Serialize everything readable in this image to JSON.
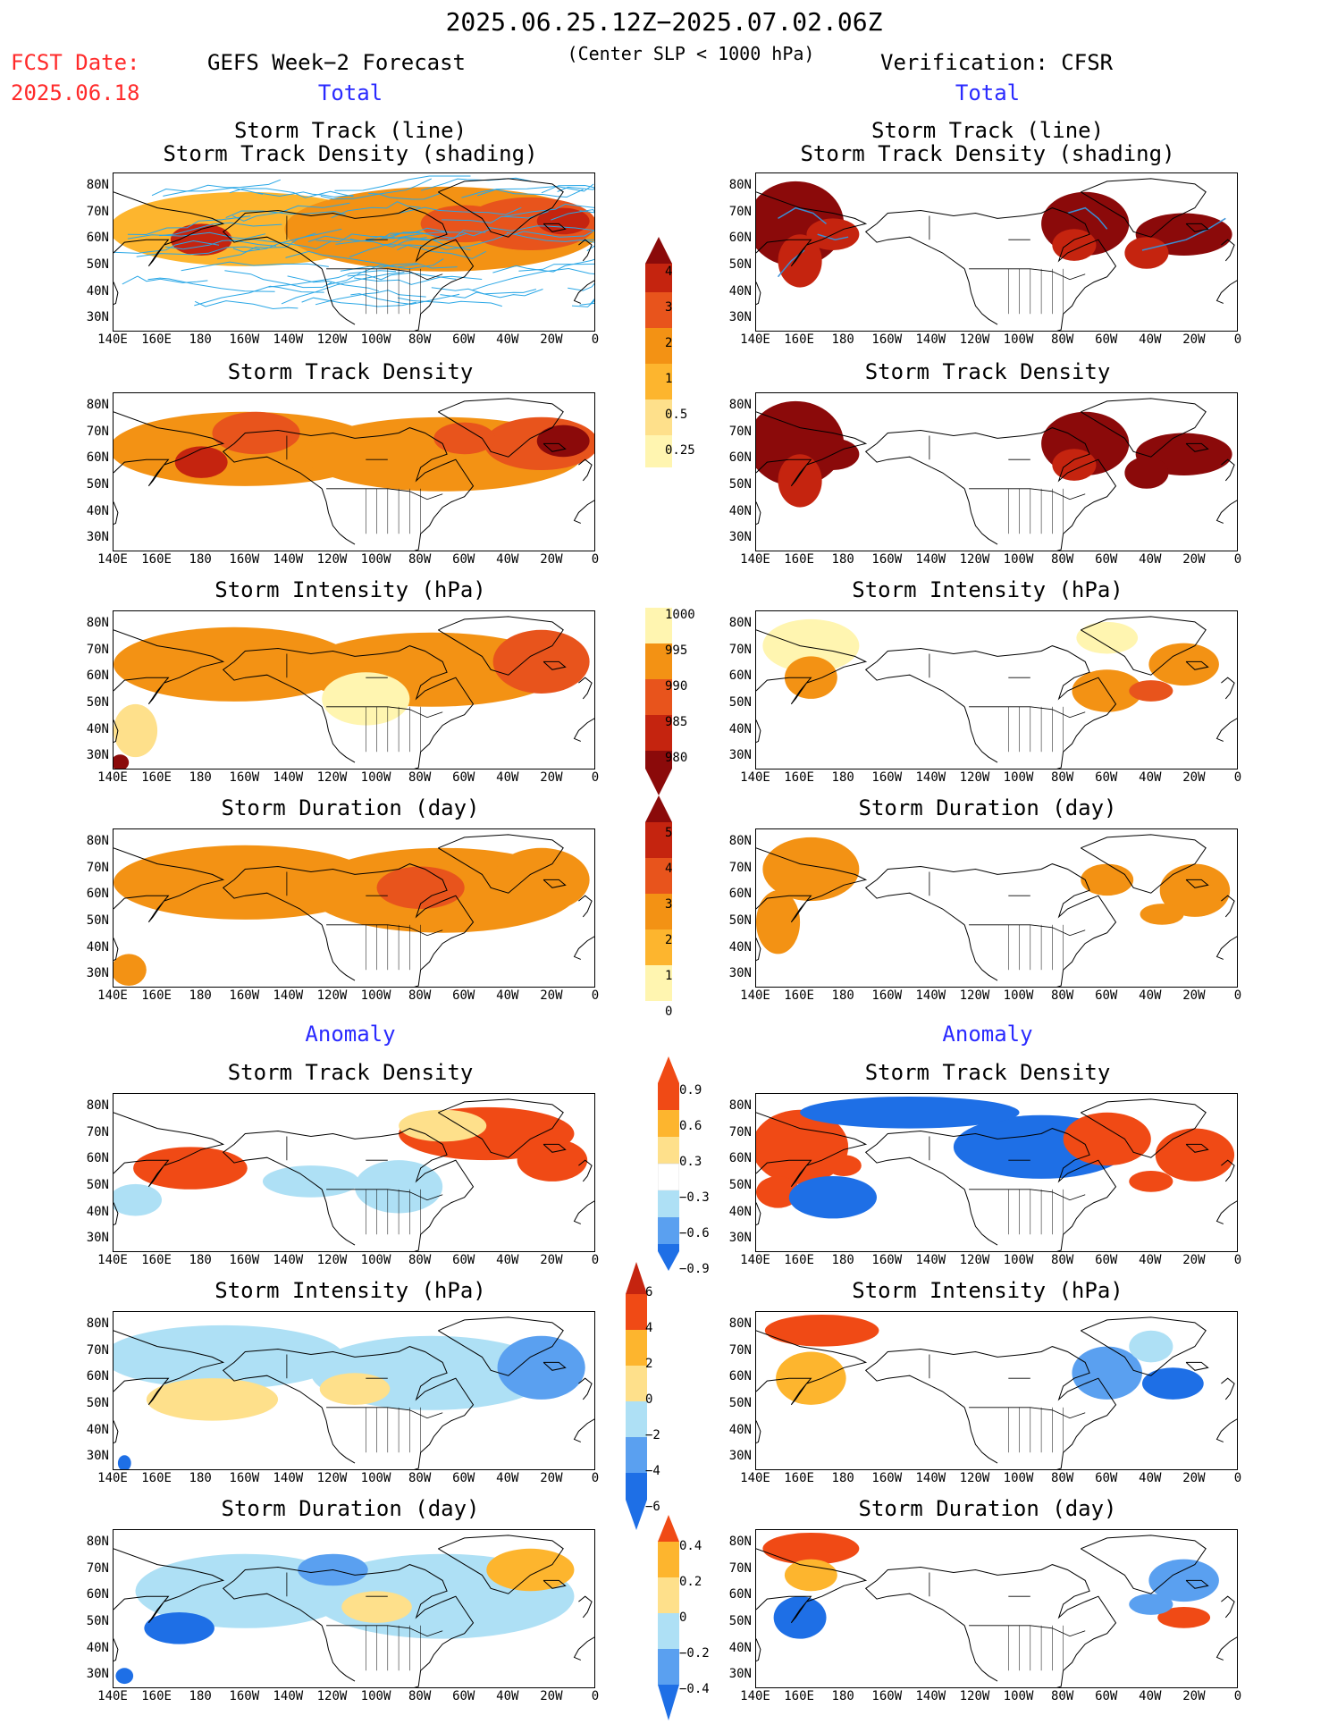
{
  "header": {
    "date_range": "2025.06.25.12Z−2025.07.02.06Z",
    "fcst_label": "FCST Date:",
    "fcst_date": "2025.06.18",
    "left_title": "GEFS Week−2 Forecast",
    "criterion": "(Center SLP < 1000 hPa)",
    "right_title": "Verification: CFSR"
  },
  "section_labels": {
    "total": "Total",
    "anomaly": "Anomaly"
  },
  "panel_titles": {
    "track_line": "Storm Track (line)",
    "track_density_shading": "Storm Track Density (shading)",
    "track_density": "Storm Track Density",
    "intensity": "Storm Intensity (hPa)",
    "duration": "Storm Duration (day)"
  },
  "axes": {
    "lat_ticks": [
      "80N",
      "70N",
      "60N",
      "50N",
      "40N",
      "30N"
    ],
    "lon_ticks": [
      "140E",
      "160E",
      "180",
      "160W",
      "140W",
      "120W",
      "100W",
      "80W",
      "60W",
      "40W",
      "20W",
      "0"
    ]
  },
  "colorbars": {
    "density_total": [
      "0.25",
      "0.5",
      "1",
      "2",
      "3",
      "4"
    ],
    "intensity_total": [
      "1000",
      "995",
      "990",
      "985",
      "980"
    ],
    "duration_total": [
      "0",
      "1",
      "2",
      "3",
      "4",
      "5"
    ],
    "density_anom": [
      "0.9",
      "0.6",
      "0.3",
      "−0.3",
      "−0.6",
      "−0.9"
    ],
    "intensity_anom": [
      "6",
      "4",
      "2",
      "0",
      "−2",
      "−4",
      "−6"
    ],
    "duration_anom": [
      "0.4",
      "0.2",
      "0",
      "−0.2",
      "−0.4"
    ]
  },
  "colors": {
    "total_scale": [
      "#fff5b0",
      "#fee08b",
      "#fdb52e",
      "#f39214",
      "#e8541c",
      "#c5240f",
      "#8b0a0a"
    ],
    "anom_scale": [
      "#1e6fe6",
      "#5aa0f0",
      "#aee0f5",
      "#ffffff",
      "#fee08b",
      "#fdb52e",
      "#f04a15"
    ],
    "track_line": "#2aa7e6",
    "header_red": "#ff2a2a",
    "label_blue": "#2a2aff"
  }
}
